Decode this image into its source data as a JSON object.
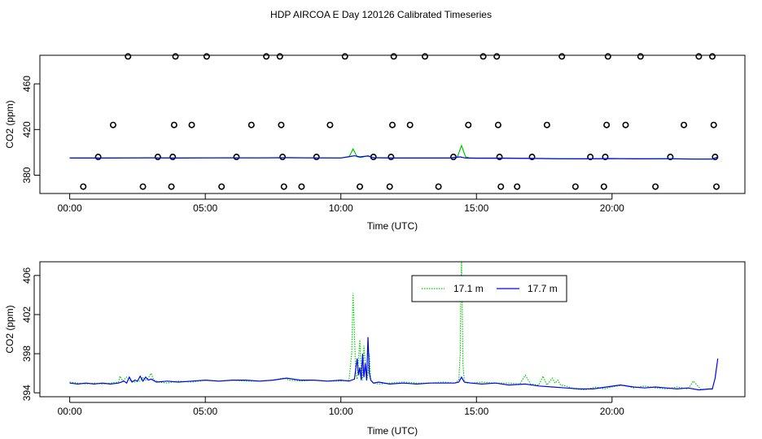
{
  "page_title": "HDP AIRCOA E  Day 120126  Calibrated Timeseries",
  "chart_data": [
    {
      "type": "scatter",
      "title": "",
      "xlabel": "Time (UTC)",
      "ylabel": "CO2 (ppm)",
      "xlim": [
        -1.1,
        24.9
      ],
      "ylim": [
        364,
        485
      ],
      "x_ticks": [
        0,
        5,
        10,
        15,
        20
      ],
      "x_tick_labels": [
        "00:00",
        "05:00",
        "10:00",
        "15:00",
        "20:00"
      ],
      "y_ticks": [
        380,
        420,
        460
      ],
      "y_tick_labels": [
        "380",
        "420",
        "460"
      ],
      "grid": false,
      "series": [
        {
          "color": "#000000",
          "marker": "open-circle",
          "points": [
            [
              0.5,
              370
            ],
            [
              1.05,
              396
            ],
            [
              1.6,
              424
            ],
            [
              2.15,
              484
            ],
            [
              2.7,
              370
            ],
            [
              3.25,
              396
            ],
            [
              3.75,
              370
            ],
            [
              3.8,
              396
            ],
            [
              3.85,
              424
            ],
            [
              3.9,
              484
            ],
            [
              4.5,
              424
            ],
            [
              5.05,
              484
            ],
            [
              5.6,
              370
            ],
            [
              6.15,
              396
            ],
            [
              6.7,
              424
            ],
            [
              7.25,
              484
            ],
            [
              7.75,
              484
            ],
            [
              7.8,
              424
            ],
            [
              7.85,
              396
            ],
            [
              7.9,
              370
            ],
            [
              8.55,
              370
            ],
            [
              9.1,
              396
            ],
            [
              9.6,
              424
            ],
            [
              10.15,
              484
            ],
            [
              10.7,
              370
            ],
            [
              11.2,
              396
            ],
            [
              11.8,
              370
            ],
            [
              11.85,
              396
            ],
            [
              11.9,
              424
            ],
            [
              11.95,
              484
            ],
            [
              12.55,
              424
            ],
            [
              13.1,
              484
            ],
            [
              13.6,
              370
            ],
            [
              14.15,
              396
            ],
            [
              14.7,
              424
            ],
            [
              15.25,
              484
            ],
            [
              15.75,
              484
            ],
            [
              15.8,
              424
            ],
            [
              15.85,
              396
            ],
            [
              15.9,
              370
            ],
            [
              16.5,
              370
            ],
            [
              17.05,
              396
            ],
            [
              17.6,
              424
            ],
            [
              18.15,
              484
            ],
            [
              18.65,
              370
            ],
            [
              19.2,
              396
            ],
            [
              19.7,
              370
            ],
            [
              19.75,
              396
            ],
            [
              19.8,
              424
            ],
            [
              19.85,
              484
            ],
            [
              20.5,
              424
            ],
            [
              21.05,
              484
            ],
            [
              21.6,
              370
            ],
            [
              22.15,
              396
            ],
            [
              22.65,
              424
            ],
            [
              23.2,
              484
            ],
            [
              23.7,
              484
            ],
            [
              23.75,
              424
            ],
            [
              23.8,
              396
            ],
            [
              23.85,
              370
            ]
          ]
        },
        {
          "color": "#00cc00",
          "line": "solid",
          "points": [
            [
              0.0,
              395.0
            ],
            [
              1.0,
              395.0
            ],
            [
              2.0,
              395.2
            ],
            [
              3.0,
              395.3
            ],
            [
              4.0,
              395.0
            ],
            [
              5.0,
              395.2
            ],
            [
              6.0,
              395.3
            ],
            [
              7.0,
              395.2
            ],
            [
              8.0,
              395.4
            ],
            [
              9.0,
              395.2
            ],
            [
              10.0,
              395.1
            ],
            [
              10.3,
              396
            ],
            [
              10.45,
              403
            ],
            [
              10.6,
              396
            ],
            [
              10.75,
              395.5
            ],
            [
              11.0,
              397
            ],
            [
              11.2,
              395.4
            ],
            [
              12.0,
              395.0
            ],
            [
              13.0,
              395.0
            ],
            [
              14.0,
              395.0
            ],
            [
              14.3,
              396
            ],
            [
              14.45,
              406
            ],
            [
              14.6,
              396
            ],
            [
              14.75,
              395.1
            ],
            [
              15.0,
              395.0
            ],
            [
              16.0,
              395.0
            ],
            [
              17.0,
              394.8
            ],
            [
              18.0,
              394.5
            ],
            [
              19.0,
              394.3
            ],
            [
              20.0,
              394.6
            ],
            [
              21.0,
              394.3
            ],
            [
              22.0,
              394.5
            ],
            [
              23.0,
              394.2
            ],
            [
              23.7,
              394.1
            ],
            [
              23.9,
              396
            ]
          ]
        },
        {
          "color": "#0000ff",
          "line": "solid",
          "points": [
            [
              0.0,
              395.0
            ],
            [
              1.0,
              395.0
            ],
            [
              2.0,
              395.1
            ],
            [
              3.0,
              395.2
            ],
            [
              4.0,
              395.0
            ],
            [
              5.0,
              395.2
            ],
            [
              6.0,
              395.2
            ],
            [
              7.0,
              395.2
            ],
            [
              8.0,
              395.3
            ],
            [
              9.0,
              395.2
            ],
            [
              10.0,
              395.1
            ],
            [
              10.5,
              397
            ],
            [
              10.7,
              396
            ],
            [
              11.0,
              396.8
            ],
            [
              11.2,
              395.3
            ],
            [
              12.0,
              395.0
            ],
            [
              13.0,
              395.0
            ],
            [
              14.0,
              395.0
            ],
            [
              14.4,
              396
            ],
            [
              14.6,
              395.0
            ],
            [
              15.0,
              394.9
            ],
            [
              16.0,
              394.9
            ],
            [
              17.0,
              394.7
            ],
            [
              18.0,
              394.4
            ],
            [
              19.0,
              394.3
            ],
            [
              20.0,
              394.5
            ],
            [
              21.0,
              394.3
            ],
            [
              22.0,
              394.4
            ],
            [
              23.0,
              394.1
            ],
            [
              23.7,
              394.1
            ],
            [
              23.9,
              396
            ]
          ]
        }
      ]
    },
    {
      "type": "line",
      "title": "",
      "xlabel": "Time (UTC)",
      "ylabel": "CO2 (ppm)",
      "xlim": [
        -1.1,
        24.9
      ],
      "ylim": [
        393.6,
        407.4
      ],
      "x_ticks": [
        0,
        5,
        10,
        15,
        20
      ],
      "x_tick_labels": [
        "00:00",
        "05:00",
        "10:00",
        "15:00",
        "20:00"
      ],
      "y_ticks": [
        394,
        398,
        402,
        406
      ],
      "y_tick_labels": [
        "394",
        "398",
        "402",
        "406"
      ],
      "grid": false,
      "legend": "top-center",
      "series": [
        {
          "name": "17.1 m",
          "color": "#00cc00",
          "dash": "dotted",
          "x": [
            0.0,
            0.3,
            0.6,
            0.9,
            1.2,
            1.5,
            1.8,
            1.85,
            1.95,
            2.1,
            2.2,
            2.4,
            2.6,
            2.7,
            2.8,
            2.9,
            3.0,
            3.1,
            3.3,
            3.6,
            4.0,
            4.5,
            5.0,
            5.5,
            6.0,
            6.5,
            7.0,
            7.5,
            7.9,
            8.1,
            8.5,
            9.0,
            9.5,
            10.0,
            10.3,
            10.4,
            10.45,
            10.5,
            10.55,
            10.6,
            10.65,
            10.7,
            10.75,
            10.8,
            10.85,
            10.9,
            10.95,
            11.0,
            11.05,
            11.1,
            11.2,
            11.4,
            11.8,
            12.3,
            12.8,
            13.3,
            13.8,
            14.2,
            14.35,
            14.4,
            14.42,
            14.45,
            14.48,
            14.5,
            14.55,
            14.6,
            14.8,
            15.2,
            15.7,
            16.2,
            16.6,
            16.8,
            17.0,
            17.3,
            17.45,
            17.6,
            17.8,
            17.9,
            18.0,
            18.1,
            18.3,
            18.6,
            19.0,
            19.4,
            19.7,
            20.0,
            20.4,
            20.8,
            21.2,
            21.6,
            22.0,
            22.4,
            22.8,
            23.0,
            23.3,
            23.6,
            23.7
          ],
          "values": [
            395.1,
            395.0,
            394.9,
            395.0,
            394.9,
            395.0,
            395.1,
            395.7,
            395.2,
            395.6,
            395.3,
            395.1,
            395.2,
            395.6,
            395.3,
            395.5,
            396.0,
            395.3,
            395.1,
            395.0,
            395.2,
            395.1,
            395.3,
            395.2,
            395.3,
            395.2,
            395.2,
            395.3,
            395.5,
            395.3,
            395.2,
            395.3,
            395.2,
            395.2,
            395.3,
            398.0,
            404.2,
            400.0,
            396.0,
            395.4,
            397.5,
            399.4,
            396.0,
            395.3,
            398.8,
            397.0,
            395.2,
            396.0,
            398.0,
            395.3,
            395.0,
            394.9,
            395.0,
            395.1,
            395.0,
            395.0,
            395.1,
            395.0,
            395.3,
            398.0,
            403.0,
            407.4,
            402.0,
            397.0,
            395.2,
            395.0,
            395.0,
            395.1,
            395.0,
            395.0,
            394.9,
            395.8,
            394.9,
            394.8,
            395.7,
            394.8,
            395.5,
            395.0,
            395.3,
            394.8,
            394.7,
            394.4,
            394.3,
            394.6,
            394.4,
            394.6,
            394.8,
            394.5,
            394.7,
            394.5,
            394.4,
            394.6,
            394.4,
            395.2,
            394.3,
            394.4,
            394.3
          ]
        },
        {
          "name": "17.7 m",
          "color": "#0000ff",
          "dash": "solid",
          "x": [
            0.0,
            0.3,
            0.6,
            0.9,
            1.2,
            1.5,
            1.8,
            2.0,
            2.1,
            2.2,
            2.3,
            2.4,
            2.5,
            2.6,
            2.7,
            2.8,
            2.9,
            3.0,
            3.2,
            3.6,
            4.0,
            4.5,
            5.0,
            5.5,
            6.0,
            6.5,
            7.0,
            7.5,
            8.0,
            8.5,
            9.0,
            9.5,
            10.0,
            10.3,
            10.5,
            10.6,
            10.65,
            10.7,
            10.75,
            10.8,
            10.85,
            10.9,
            10.95,
            11.0,
            11.05,
            11.1,
            11.2,
            11.4,
            11.8,
            12.3,
            12.8,
            13.3,
            13.8,
            14.2,
            14.35,
            14.45,
            14.55,
            14.8,
            15.2,
            15.7,
            16.2,
            16.8,
            17.3,
            17.8,
            18.3,
            18.8,
            19.3,
            19.8,
            20.3,
            20.8,
            21.2,
            21.6,
            22.0,
            22.4,
            22.8,
            23.2,
            23.6,
            23.7,
            23.8,
            23.9
          ],
          "values": [
            395.0,
            394.9,
            395.0,
            394.9,
            395.0,
            394.9,
            395.0,
            395.2,
            395.0,
            395.6,
            395.1,
            395.3,
            395.2,
            395.7,
            395.2,
            395.6,
            395.3,
            395.4,
            395.1,
            395.2,
            395.1,
            395.2,
            395.3,
            395.2,
            395.3,
            395.3,
            395.2,
            395.3,
            395.5,
            395.3,
            395.3,
            395.2,
            395.3,
            395.2,
            395.4,
            397.5,
            395.8,
            396.6,
            395.3,
            398.0,
            395.6,
            397.0,
            395.3,
            399.7,
            396.0,
            395.3,
            395.0,
            395.1,
            394.9,
            395.0,
            394.9,
            395.0,
            395.0,
            395.0,
            395.1,
            395.6,
            395.1,
            395.0,
            394.9,
            395.0,
            394.8,
            394.9,
            394.7,
            394.6,
            394.5,
            394.4,
            394.4,
            394.6,
            394.8,
            394.6,
            394.5,
            394.6,
            394.5,
            394.4,
            394.5,
            394.3,
            394.4,
            394.4,
            395.5,
            397.5
          ]
        }
      ]
    }
  ]
}
